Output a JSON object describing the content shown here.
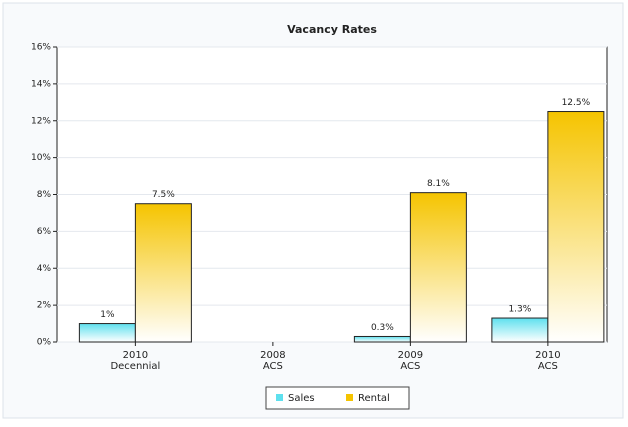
{
  "chart_data": {
    "type": "bar",
    "title": "Vacancy Rates",
    "categories": [
      [
        "2010",
        "Decennial"
      ],
      [
        "2008",
        "ACS"
      ],
      [
        "2009",
        "ACS"
      ],
      [
        "2010",
        "ACS"
      ]
    ],
    "series": [
      {
        "name": "Sales",
        "color": "#5ee0ee",
        "values": [
          1,
          null,
          0.3,
          1.3
        ],
        "value_labels": [
          "1%",
          null,
          "0.3%",
          "1.3%"
        ]
      },
      {
        "name": "Rental",
        "color": "#f5c400",
        "values": [
          7.5,
          null,
          8.1,
          12.5
        ],
        "value_labels": [
          "7.5%",
          null,
          "8.1%",
          "12.5%"
        ]
      }
    ],
    "ylim": [
      0,
      16
    ],
    "yticks": [
      {
        "value": 0,
        "label": "0%"
      },
      {
        "value": 2,
        "label": "2%"
      },
      {
        "value": 4,
        "label": "4%"
      },
      {
        "value": 6,
        "label": "6%"
      },
      {
        "value": 8,
        "label": "8%"
      },
      {
        "value": 10,
        "label": "10%"
      },
      {
        "value": 12,
        "label": "12%"
      },
      {
        "value": 14,
        "label": "14%"
      },
      {
        "value": 16,
        "label": "16%"
      }
    ],
    "grid": true,
    "legend": "bottom"
  }
}
